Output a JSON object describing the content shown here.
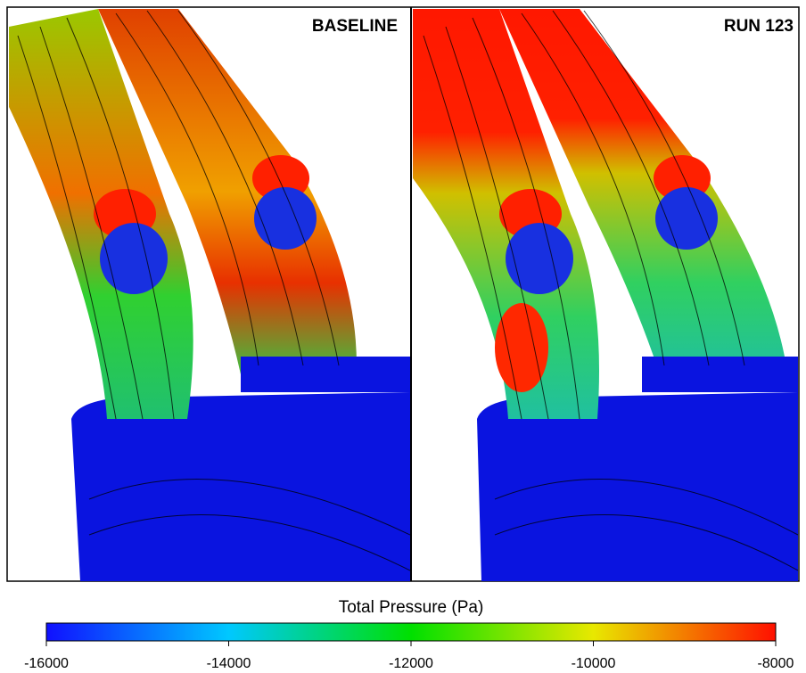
{
  "panels": [
    {
      "label": "BASELINE"
    },
    {
      "label": "RUN 123"
    }
  ],
  "colorbar": {
    "title": "Total Pressure (Pa)",
    "lim": [
      -16000,
      -8000
    ],
    "ticks": [
      -16000,
      -14000,
      -12000,
      -10000,
      -8000
    ]
  }
}
